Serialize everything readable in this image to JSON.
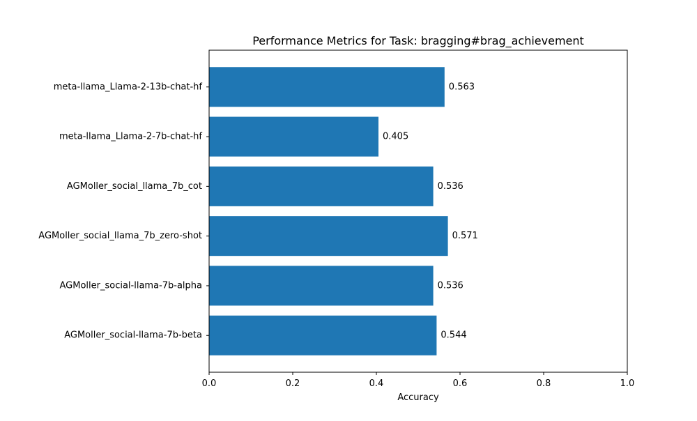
{
  "chart_data": {
    "type": "bar",
    "orientation": "horizontal",
    "title": "Performance Metrics for Task: bragging#brag_achievement",
    "xlabel": "Accuracy",
    "ylabel": "",
    "xlim": [
      0,
      1
    ],
    "xticks": [
      0.0,
      0.2,
      0.4,
      0.6,
      0.8,
      1.0
    ],
    "xtick_labels": [
      "0.0",
      "0.2",
      "0.4",
      "0.6",
      "0.8",
      "1.0"
    ],
    "categories": [
      "meta-llama_Llama-2-13b-chat-hf",
      "meta-llama_Llama-2-7b-chat-hf",
      "AGMoller_social_llama_7b_cot",
      "AGMoller_social_llama_7b_zero-shot",
      "AGMoller_social-llama-7b-alpha",
      "AGMoller_social-llama-7b-beta"
    ],
    "values": [
      0.563,
      0.405,
      0.536,
      0.571,
      0.536,
      0.544
    ],
    "value_labels": [
      "0.563",
      "0.405",
      "0.536",
      "0.571",
      "0.536",
      "0.544"
    ],
    "bar_color": "#1f77b4",
    "grid": false,
    "legend": false
  }
}
